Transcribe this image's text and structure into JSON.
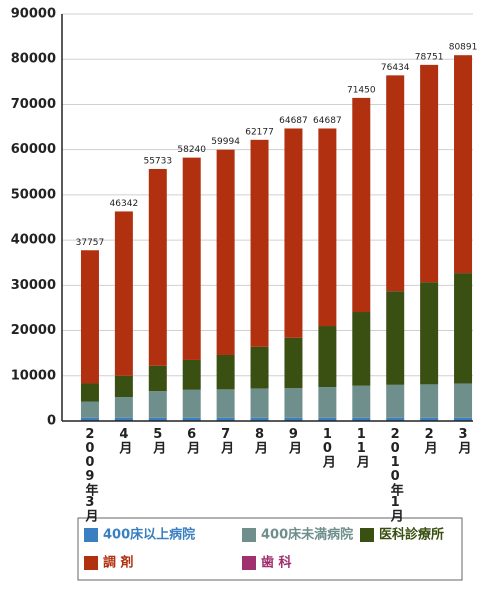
{
  "chart_data": {
    "type": "stacked_bar",
    "categories": [
      "2009年3月",
      "4月",
      "5月",
      "6月",
      "7月",
      "8月",
      "9月",
      "10月",
      "11月",
      "2010年1月",
      "2月",
      "3月"
    ],
    "series": [
      {
        "name": "400床以上病院",
        "color": "#3a7fc1",
        "values": [
          700,
          700,
          700,
          700,
          700,
          700,
          700,
          700,
          700,
          700,
          700,
          700
        ]
      },
      {
        "name": "400床未満病院",
        "color": "#6f8f8d",
        "values": [
          3600,
          4600,
          5900,
          6200,
          6300,
          6500,
          6600,
          6800,
          7100,
          7300,
          7400,
          7600
        ]
      },
      {
        "name": "医科診療所",
        "color": "#3a4f12",
        "values": [
          4000,
          4700,
          5600,
          6600,
          7600,
          9200,
          11100,
          13500,
          16300,
          20700,
          22600,
          24400
        ]
      },
      {
        "name": "調 剤",
        "color": "#b0300f",
        "values": [
          29457,
          36342,
          43533,
          44740,
          45394,
          45777,
          46287,
          43687,
          47350,
          47734,
          48051,
          48191
        ]
      },
      {
        "name": "歯 科",
        "color": "#a0306e",
        "values": [
          0,
          0,
          0,
          0,
          0,
          0,
          0,
          0,
          0,
          0,
          0,
          0
        ]
      }
    ],
    "totals": [
      37757,
      46342,
      55733,
      58240,
      59994,
      62177,
      64687,
      64687,
      71450,
      76434,
      78751,
      80891
    ],
    "ylim": [
      0,
      90000
    ],
    "yticks": [
      0,
      10000,
      20000,
      30000,
      40000,
      50000,
      60000,
      70000,
      80000,
      90000
    ],
    "grid": true
  }
}
